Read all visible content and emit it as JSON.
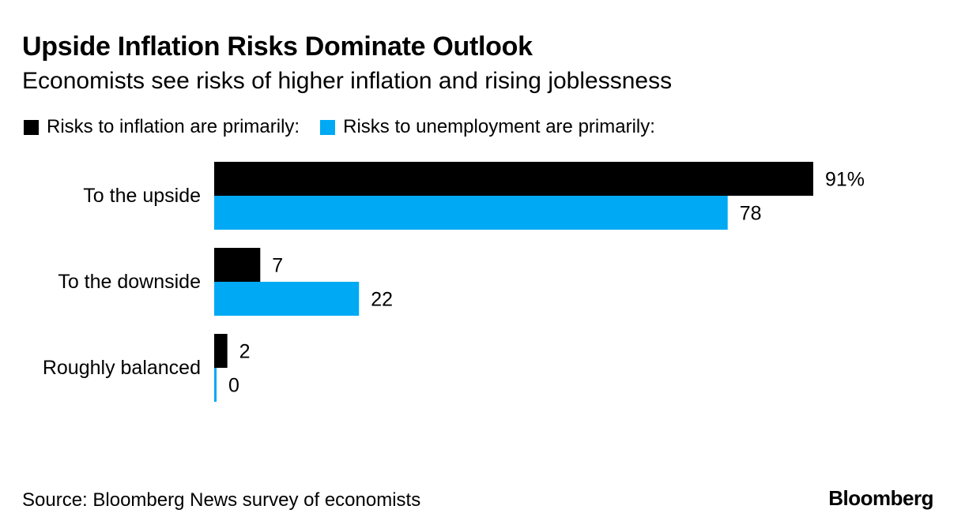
{
  "chart_data": {
    "type": "bar",
    "orientation": "horizontal",
    "title": "Upside Inflation Risks Dominate Outlook",
    "subtitle": "Economists see risks of higher inflation and rising joblessness",
    "categories": [
      "To the upside",
      "To the downside",
      "Roughly balanced"
    ],
    "series": [
      {
        "name": "Risks to inflation are primarily:",
        "color": "#000000",
        "values": [
          91,
          7,
          2
        ],
        "labels": [
          "91%",
          "7",
          "2"
        ]
      },
      {
        "name": "Risks to unemployment are primarily:",
        "color": "#00a9f4",
        "values": [
          78,
          22,
          0
        ],
        "labels": [
          "78",
          "22",
          "0"
        ]
      }
    ],
    "xlim": [
      0,
      100
    ],
    "legend": "top-left",
    "grid": false
  },
  "footer": {
    "source": "Source: Bloomberg News survey of economists",
    "logo": "Bloomberg"
  }
}
